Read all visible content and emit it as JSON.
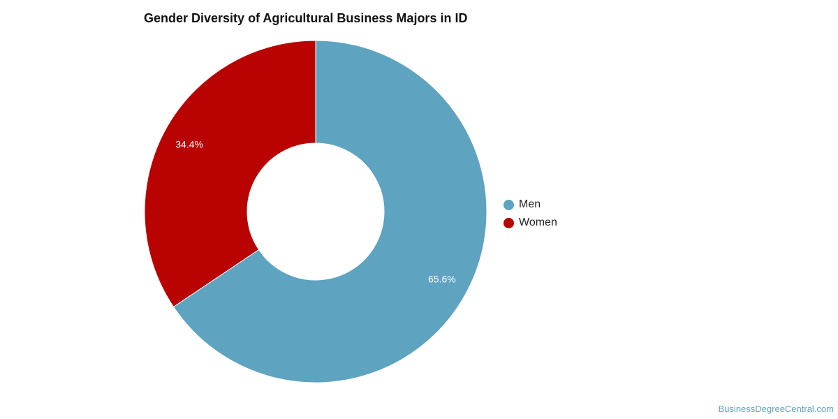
{
  "title": "Gender Diversity of Agricultural Business Majors in ID",
  "credit": "BusinessDegreeCentral.com",
  "chart_data": {
    "type": "pie",
    "title": "Gender Diversity of Agricultural Business Majors in ID",
    "donut": true,
    "legend_position": "right",
    "slices": [
      {
        "name": "Men",
        "value": 65.6,
        "label": "65.6%",
        "color": "#5ea3c0"
      },
      {
        "name": "Women",
        "value": 34.4,
        "label": "34.4%",
        "color": "#b90303"
      }
    ]
  },
  "legend": {
    "items": [
      {
        "label": "Men",
        "color": "#5ea3c0"
      },
      {
        "label": "Women",
        "color": "#b90303"
      }
    ]
  }
}
